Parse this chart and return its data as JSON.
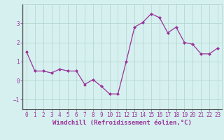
{
  "x": [
    0,
    1,
    2,
    3,
    4,
    5,
    6,
    7,
    8,
    9,
    10,
    11,
    12,
    13,
    14,
    15,
    16,
    17,
    18,
    19,
    20,
    21,
    22,
    23
  ],
  "y": [
    1.5,
    0.5,
    0.5,
    0.4,
    0.6,
    0.5,
    0.5,
    -0.2,
    0.05,
    -0.3,
    -0.7,
    -0.7,
    1.0,
    2.8,
    3.05,
    3.5,
    3.3,
    2.5,
    2.8,
    2.0,
    1.9,
    1.4,
    1.4,
    1.7
  ],
  "line_color": "#993399",
  "marker": "D",
  "marker_size": 2,
  "background_color": "#d6f0f0",
  "grid_color": "#b0d4c8",
  "xlabel": "Windchill (Refroidissement éolien,°C)",
  "xlabel_color": "#993399",
  "tick_color": "#993399",
  "ylim": [
    -1.5,
    4.0
  ],
  "xlim": [
    -0.5,
    23.5
  ],
  "yticks": [
    -1,
    0,
    1,
    2,
    3
  ],
  "xticks": [
    0,
    1,
    2,
    3,
    4,
    5,
    6,
    7,
    8,
    9,
    10,
    11,
    12,
    13,
    14,
    15,
    16,
    17,
    18,
    19,
    20,
    21,
    22,
    23
  ],
  "label_fontsize": 6.5,
  "tick_fontsize": 5.5,
  "line_width": 0.9
}
